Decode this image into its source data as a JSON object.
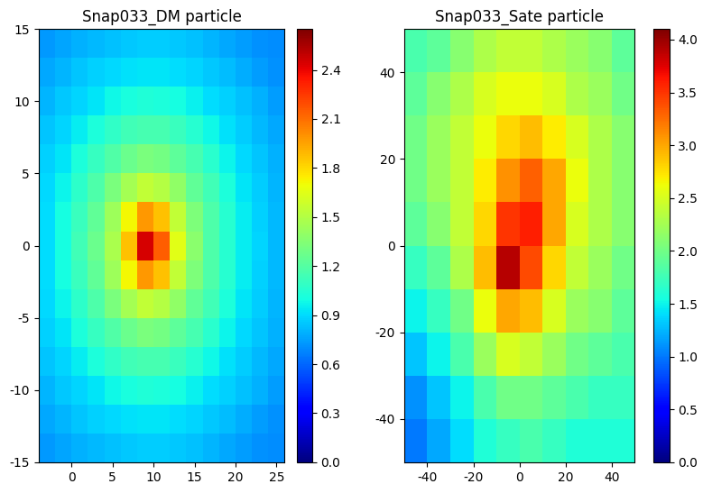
{
  "chart_data": [
    {
      "type": "heatmap",
      "title": "Snap033_DM particle",
      "color": "jet",
      "xlim": [
        -4,
        26
      ],
      "ylim": [
        -15,
        15
      ],
      "xticks": [
        0,
        5,
        10,
        15,
        20,
        25
      ],
      "yticks": [
        -15,
        -10,
        -5,
        0,
        5,
        10,
        15
      ],
      "cells": [
        [
          0.73,
          0.76,
          0.79,
          0.81,
          0.83,
          0.85,
          0.86,
          0.86,
          0.85,
          0.83,
          0.8,
          0.77,
          0.74,
          0.71,
          0.7
        ],
        [
          0.77,
          0.8,
          0.84,
          0.87,
          0.9,
          0.92,
          0.93,
          0.93,
          0.91,
          0.89,
          0.85,
          0.82,
          0.78,
          0.74,
          0.71
        ],
        [
          0.8,
          0.85,
          0.89,
          0.93,
          0.98,
          1.01,
          1.03,
          1.02,
          1.0,
          0.96,
          0.91,
          0.87,
          0.83,
          0.79,
          0.74
        ],
        [
          0.84,
          0.89,
          0.95,
          1.02,
          1.08,
          1.13,
          1.15,
          1.15,
          1.11,
          1.05,
          0.98,
          0.92,
          0.86,
          0.81,
          0.77
        ],
        [
          0.87,
          0.93,
          1.02,
          1.1,
          1.19,
          1.27,
          1.32,
          1.3,
          1.23,
          1.15,
          1.06,
          0.97,
          0.9,
          0.84,
          0.79
        ],
        [
          0.9,
          0.97,
          1.07,
          1.18,
          1.32,
          1.45,
          1.55,
          1.51,
          1.39,
          1.24,
          1.13,
          1.02,
          0.93,
          0.86,
          0.8
        ],
        [
          0.91,
          1.0,
          1.11,
          1.24,
          1.43,
          1.71,
          1.98,
          1.87,
          1.55,
          1.33,
          1.17,
          1.05,
          0.95,
          0.87,
          0.81
        ],
        [
          0.91,
          1.0,
          1.13,
          1.27,
          1.48,
          1.87,
          2.45,
          2.15,
          1.65,
          1.37,
          1.18,
          1.05,
          0.95,
          0.88,
          0.81
        ],
        [
          0.91,
          1.0,
          1.11,
          1.24,
          1.43,
          1.71,
          1.98,
          1.87,
          1.55,
          1.33,
          1.17,
          1.05,
          0.95,
          0.87,
          0.81
        ],
        [
          0.9,
          0.97,
          1.07,
          1.18,
          1.32,
          1.45,
          1.55,
          1.51,
          1.39,
          1.24,
          1.13,
          1.02,
          0.93,
          0.86,
          0.8
        ],
        [
          0.87,
          0.93,
          1.02,
          1.1,
          1.19,
          1.27,
          1.32,
          1.3,
          1.23,
          1.15,
          1.06,
          0.97,
          0.9,
          0.84,
          0.79
        ],
        [
          0.84,
          0.89,
          0.95,
          1.02,
          1.08,
          1.13,
          1.15,
          1.15,
          1.11,
          1.05,
          0.98,
          0.92,
          0.86,
          0.81,
          0.77
        ],
        [
          0.8,
          0.85,
          0.89,
          0.93,
          0.98,
          1.01,
          1.03,
          1.02,
          1.0,
          0.96,
          0.91,
          0.87,
          0.83,
          0.79,
          0.74
        ],
        [
          0.77,
          0.8,
          0.84,
          0.87,
          0.9,
          0.92,
          0.93,
          0.93,
          0.91,
          0.89,
          0.85,
          0.82,
          0.78,
          0.74,
          0.71
        ],
        [
          0.73,
          0.76,
          0.79,
          0.81,
          0.83,
          0.85,
          0.86,
          0.86,
          0.85,
          0.83,
          0.8,
          0.77,
          0.74,
          0.71,
          0.7
        ]
      ],
      "colorbar_range": [
        0,
        2.65
      ],
      "colorbar_ticks": [
        {
          "value": 0,
          "label": "0.0"
        },
        0.3,
        0.6,
        0.9,
        1.2,
        1.5,
        1.8,
        2.1,
        2.4
      ]
    },
    {
      "type": "heatmap",
      "title": "Snap033_Sate particle",
      "color": "jet",
      "xlim": [
        -50,
        50
      ],
      "ylim": [
        -50,
        50
      ],
      "xticks": [
        -40,
        -20,
        0,
        20,
        40
      ],
      "yticks": [
        -40,
        -20,
        0,
        20,
        40
      ],
      "cells": [
        [
          1.0,
          1.2,
          1.4,
          1.6,
          1.7,
          1.8,
          1.7,
          1.6,
          1.6,
          1.6
        ],
        [
          1.1,
          1.3,
          1.5,
          1.8,
          2.0,
          2.0,
          1.9,
          1.8,
          1.7,
          1.7
        ],
        [
          1.3,
          1.5,
          1.8,
          2.2,
          2.5,
          2.4,
          2.2,
          2.0,
          1.9,
          1.8
        ],
        [
          1.5,
          1.7,
          2.0,
          2.6,
          3.0,
          2.9,
          2.5,
          2.2,
          2.1,
          1.9
        ],
        [
          1.7,
          1.9,
          2.3,
          2.9,
          3.9,
          3.4,
          2.8,
          2.4,
          2.2,
          2.0
        ],
        [
          1.9,
          2.1,
          2.4,
          2.8,
          3.5,
          3.6,
          3.0,
          2.5,
          2.3,
          2.1
        ],
        [
          2.0,
          2.2,
          2.4,
          2.7,
          3.1,
          3.3,
          3.0,
          2.6,
          2.3,
          2.1
        ],
        [
          2.0,
          2.2,
          2.4,
          2.6,
          2.8,
          2.9,
          2.7,
          2.5,
          2.3,
          2.1
        ],
        [
          1.9,
          2.1,
          2.3,
          2.5,
          2.6,
          2.6,
          2.5,
          2.3,
          2.2,
          2.0
        ],
        [
          1.8,
          1.9,
          2.1,
          2.3,
          2.4,
          2.4,
          2.3,
          2.2,
          2.1,
          1.9
        ]
      ],
      "colorbar_range": [
        0,
        4.1
      ],
      "colorbar_ticks": [
        {
          "value": 0,
          "label": "0.0"
        },
        0.5,
        {
          "value": 1,
          "label": "1.0"
        },
        1.5,
        {
          "value": 2,
          "label": "2.0"
        },
        2.5,
        {
          "value": 3,
          "label": "3.0"
        },
        3.5,
        {
          "value": 4,
          "label": "4.0"
        }
      ]
    }
  ]
}
